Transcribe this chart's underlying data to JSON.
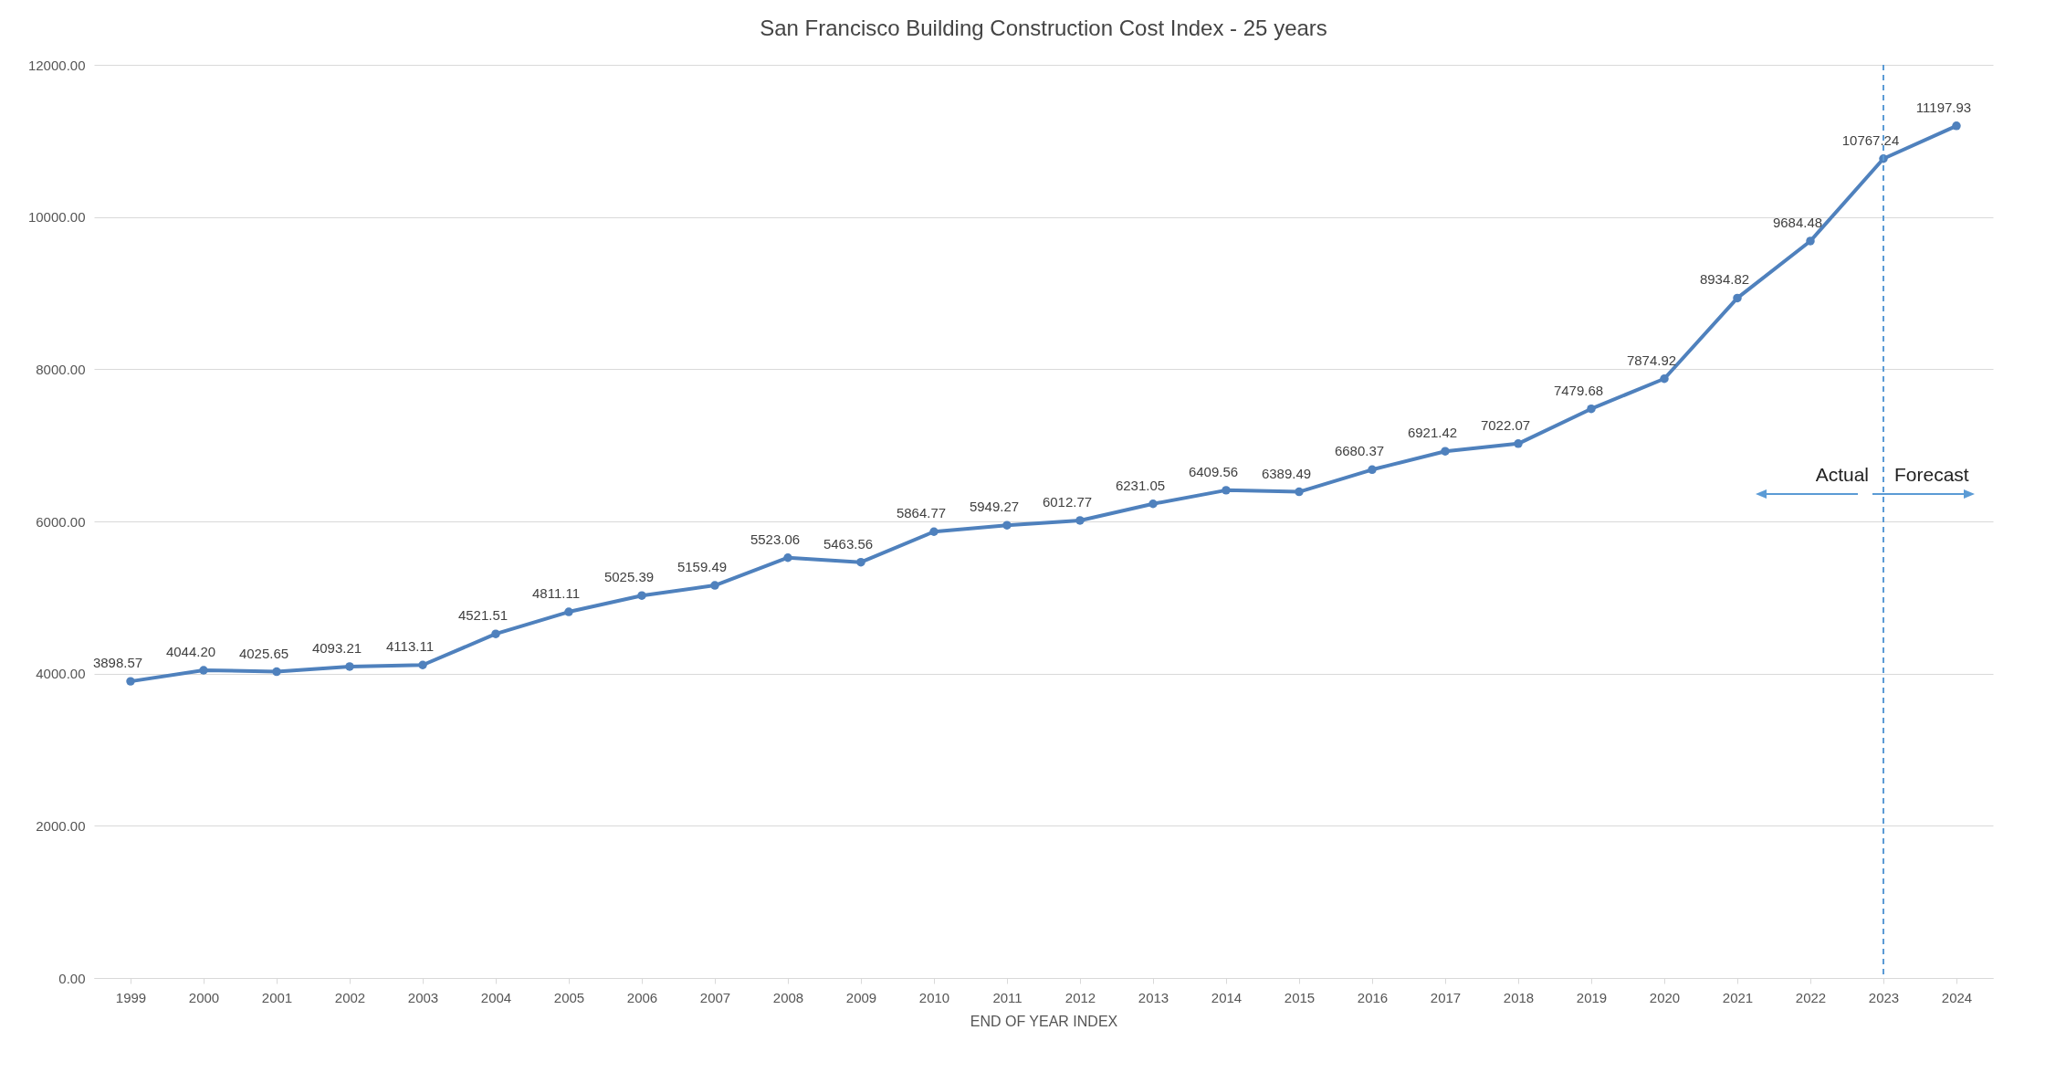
{
  "chart_data": {
    "type": "line",
    "title": "San Francisco Building Construction Cost Index - 25 years",
    "xlabel": "END OF YEAR INDEX",
    "categories": [
      "1999",
      "2000",
      "2001",
      "2002",
      "2003",
      "2004",
      "2005",
      "2006",
      "2007",
      "2008",
      "2009",
      "2010",
      "2011",
      "2012",
      "2013",
      "2014",
      "2015",
      "2016",
      "2017",
      "2018",
      "2019",
      "2020",
      "2021",
      "2022",
      "2023",
      "2024"
    ],
    "series": [
      {
        "color": "#4f81bd",
        "values": [
          3898.57,
          4044.2,
          4025.65,
          4093.21,
          4113.11,
          4521.51,
          4811.11,
          5025.39,
          5159.49,
          5523.06,
          5463.56,
          5864.77,
          5949.27,
          6012.77,
          6231.05,
          6409.56,
          6389.49,
          6680.37,
          6921.42,
          7022.07,
          7479.68,
          7874.92,
          8934.82,
          9684.48,
          10767.24,
          11197.93
        ],
        "value_labels": [
          "3898.57",
          "4044.20",
          "4025.65",
          "4093.21",
          "4113.11",
          "4521.51",
          "4811.11",
          "5025.39",
          "5159.49",
          "5523.06",
          "5463.56",
          "5864.77",
          "5949.27",
          "6012.77",
          "6231.05",
          "6409.56",
          "6389.49",
          "6680.37",
          "6921.42",
          "7022.07",
          "7479.68",
          "7874.92",
          "8934.82",
          "9684.48",
          "10767.24",
          "11197.93"
        ]
      }
    ],
    "ylim": [
      0,
      12000
    ],
    "yticks": [
      {
        "value": 0,
        "label": "0.00"
      },
      {
        "value": 2000,
        "label": "2000.00"
      },
      {
        "value": 4000,
        "label": "4000.00"
      },
      {
        "value": 6000,
        "label": "6000.00"
      },
      {
        "value": 8000,
        "label": "8000.00"
      },
      {
        "value": 10000,
        "label": "10000.00"
      },
      {
        "value": 12000,
        "label": "12000.00"
      }
    ],
    "grid": "y",
    "marker": "circle",
    "line_style": "solid",
    "ref_lines": [
      {
        "axis": "x",
        "value": "2023",
        "color": "#5b9bd5",
        "line_style": "dashed"
      }
    ],
    "annotations": [
      "Actual",
      "Forecast"
    ]
  }
}
